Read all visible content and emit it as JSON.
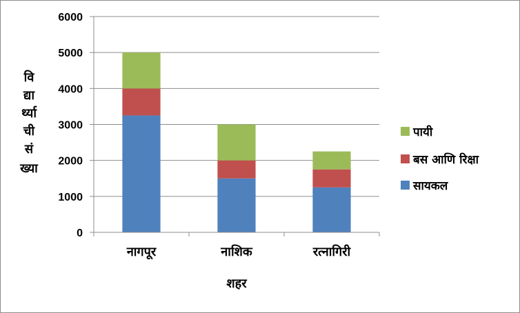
{
  "chart_data": {
    "type": "bar",
    "stacked": true,
    "categories": [
      "नागपूर",
      "नाशिक",
      "रत्नागिरी"
    ],
    "series": [
      {
        "name": "सायकल",
        "color": "#4f81bd",
        "values": [
          3250,
          1500,
          1250
        ]
      },
      {
        "name": "बस आणि रिक्षा",
        "color": "#c0504d",
        "values": [
          750,
          500,
          500
        ]
      },
      {
        "name": "पायी",
        "color": "#9bbb59",
        "values": [
          1000,
          1000,
          500
        ]
      }
    ],
    "xlabel": "शहर",
    "ylabel_lines": [
      "वि",
      "द्या",
      "र्थ्या",
      "ची",
      "सं",
      "ख्या"
    ],
    "ylim": [
      0,
      6000
    ],
    "yticks": [
      "0",
      "1000",
      "2000",
      "3000",
      "4000",
      "5000",
      "6000"
    ],
    "grid": true,
    "legend_position": "right",
    "legend_order": [
      "पायी",
      "बस आणि रिक्षा",
      "सायकल"
    ]
  }
}
